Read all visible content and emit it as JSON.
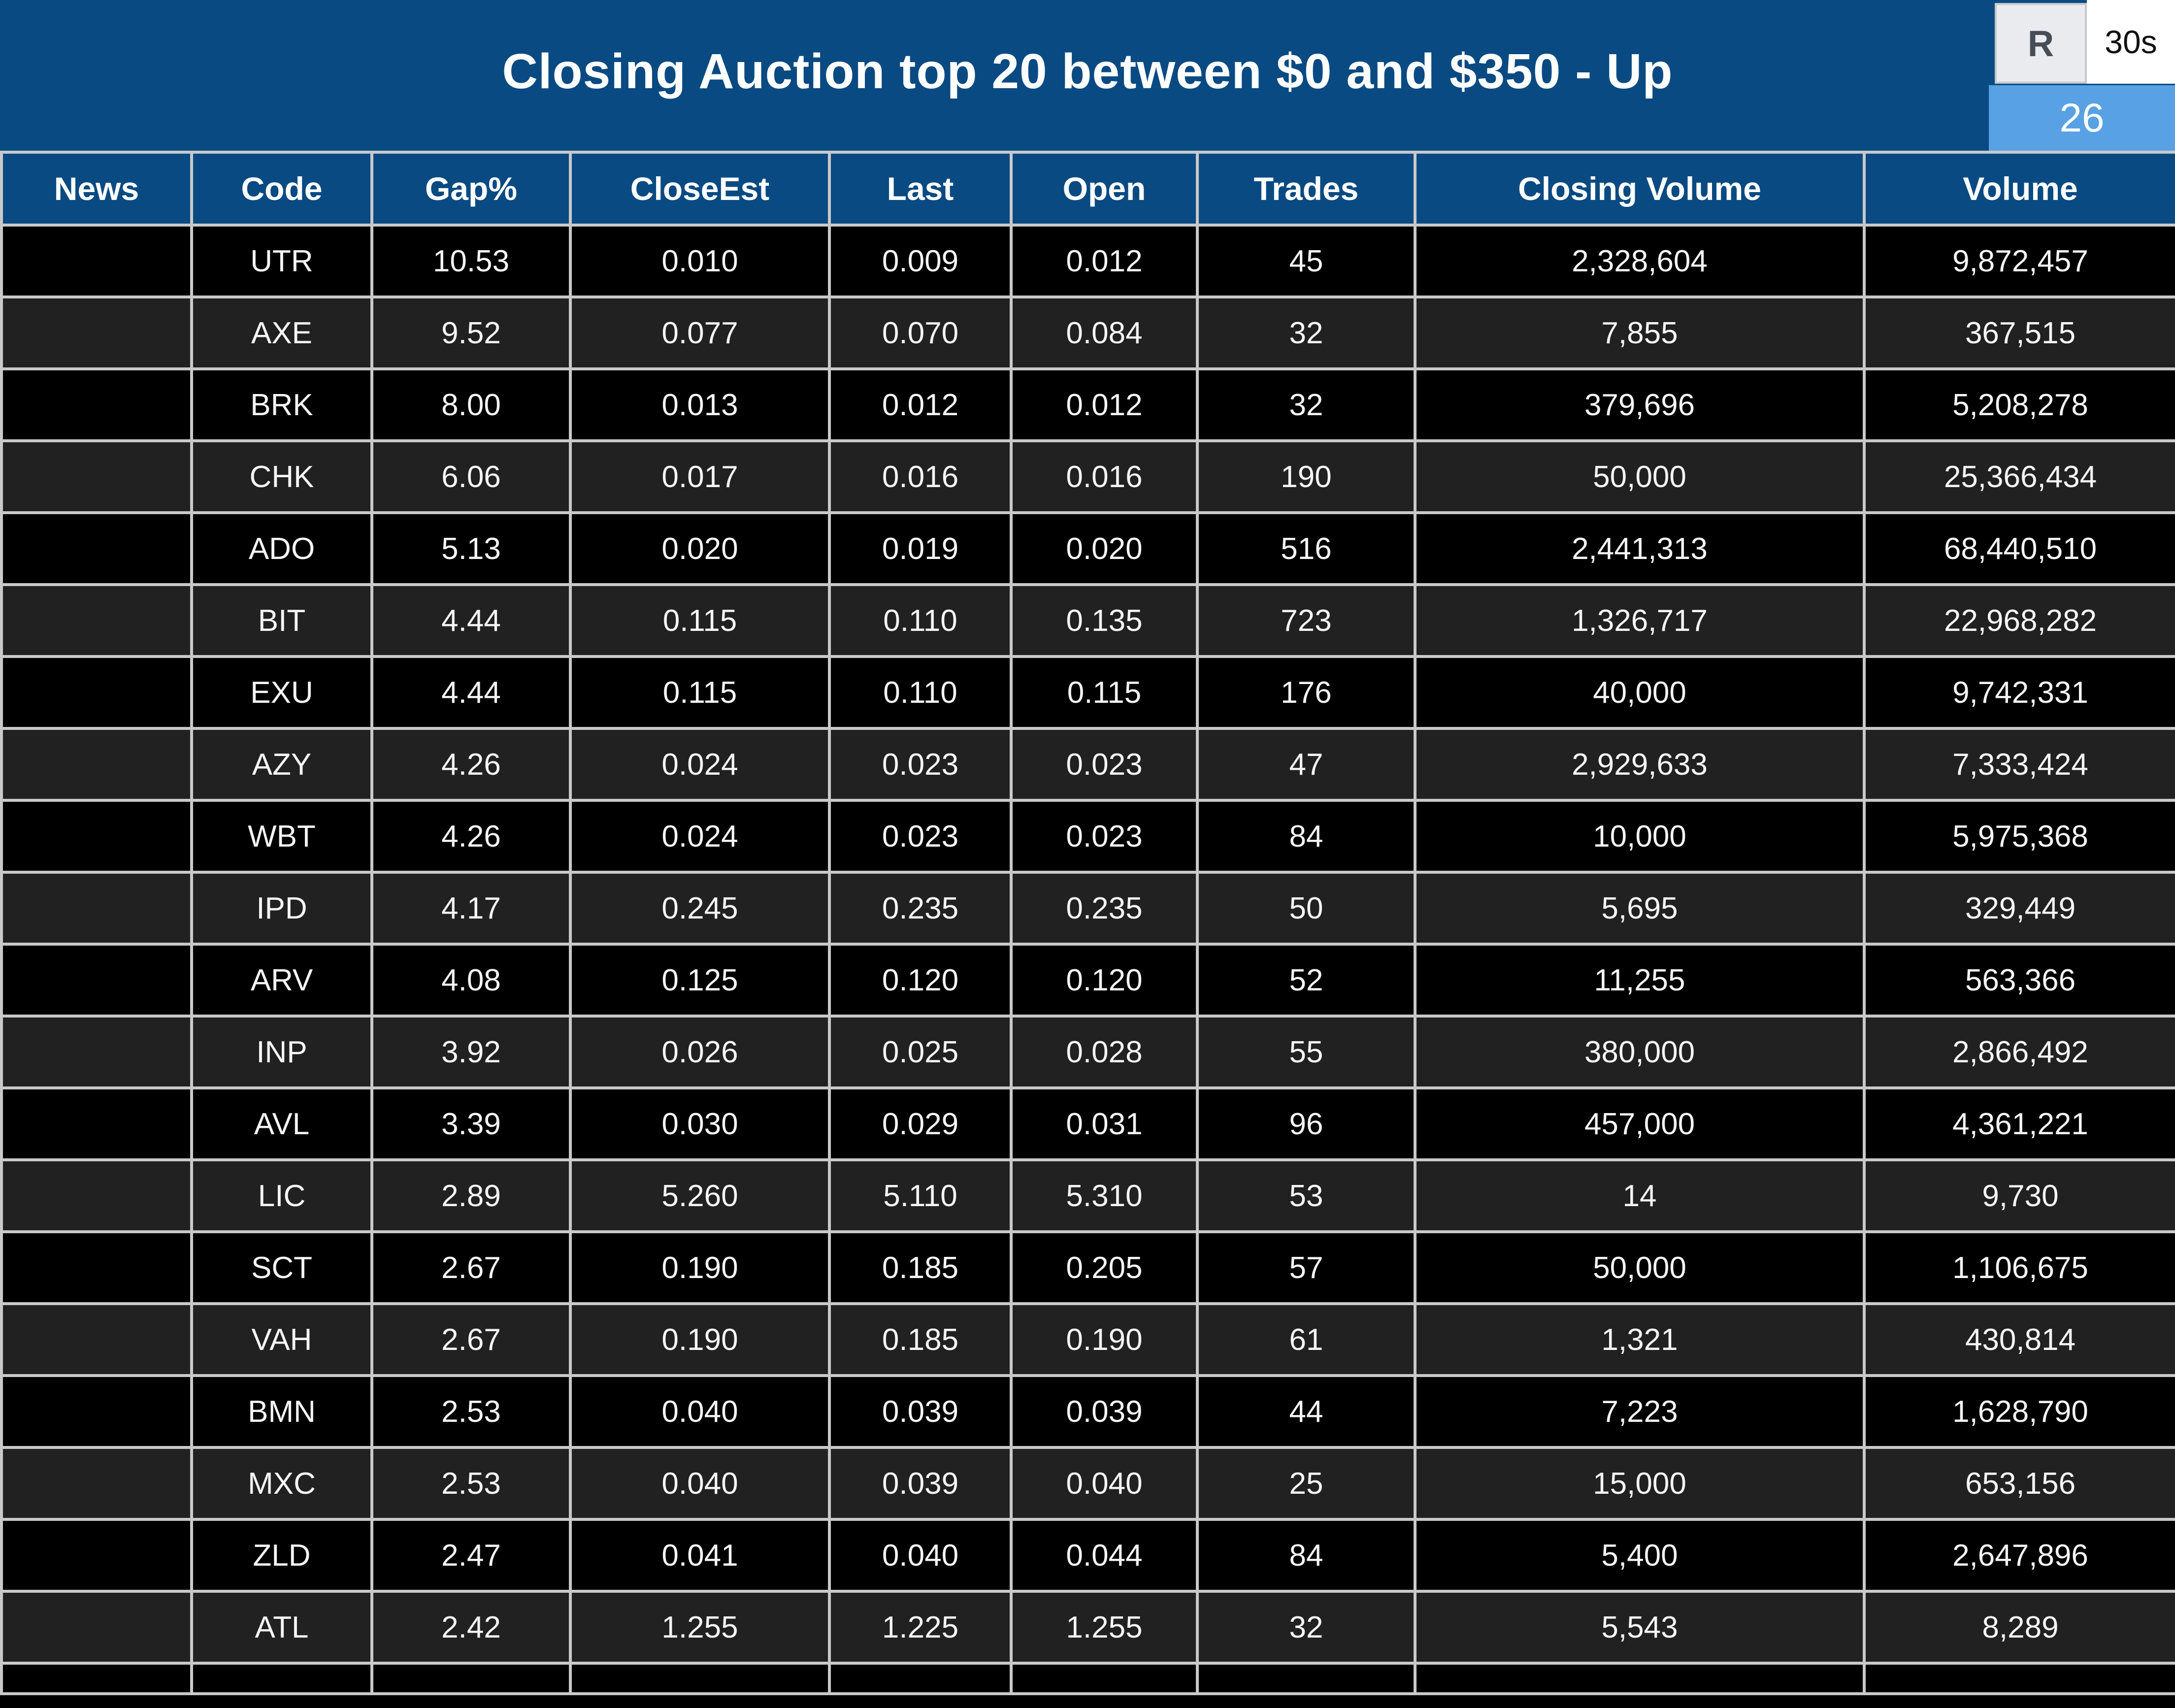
{
  "title_bar": {
    "title": "Closing Auction top 20 between $0 and $350 - Up",
    "refresh_button_label": "R",
    "interval_label": "30s",
    "count_badge": "26"
  },
  "colors": {
    "header_blue": "#0a4a82",
    "count_badge_blue": "#58a1e4",
    "grid_line": "#c9c9c9",
    "row_black": "#000000",
    "row_alt_gray": "#212121",
    "refresh_button_bg": "#e9ebee",
    "text_white": "#f5f5f5"
  },
  "table": {
    "columns": [
      "News",
      "Code",
      "Gap%",
      "CloseEst",
      "Last",
      "Open",
      "Trades",
      "Closing Volume",
      "Volume"
    ],
    "rows": [
      [
        "",
        "UTR",
        "10.53",
        "0.010",
        "0.009",
        "0.012",
        "45",
        "2,328,604",
        "9,872,457"
      ],
      [
        "",
        "AXE",
        "9.52",
        "0.077",
        "0.070",
        "0.084",
        "32",
        "7,855",
        "367,515"
      ],
      [
        "",
        "BRK",
        "8.00",
        "0.013",
        "0.012",
        "0.012",
        "32",
        "379,696",
        "5,208,278"
      ],
      [
        "",
        "CHK",
        "6.06",
        "0.017",
        "0.016",
        "0.016",
        "190",
        "50,000",
        "25,366,434"
      ],
      [
        "",
        "ADO",
        "5.13",
        "0.020",
        "0.019",
        "0.020",
        "516",
        "2,441,313",
        "68,440,510"
      ],
      [
        "",
        "BIT",
        "4.44",
        "0.115",
        "0.110",
        "0.135",
        "723",
        "1,326,717",
        "22,968,282"
      ],
      [
        "",
        "EXU",
        "4.44",
        "0.115",
        "0.110",
        "0.115",
        "176",
        "40,000",
        "9,742,331"
      ],
      [
        "",
        "AZY",
        "4.26",
        "0.024",
        "0.023",
        "0.023",
        "47",
        "2,929,633",
        "7,333,424"
      ],
      [
        "",
        "WBT",
        "4.26",
        "0.024",
        "0.023",
        "0.023",
        "84",
        "10,000",
        "5,975,368"
      ],
      [
        "",
        "IPD",
        "4.17",
        "0.245",
        "0.235",
        "0.235",
        "50",
        "5,695",
        "329,449"
      ],
      [
        "",
        "ARV",
        "4.08",
        "0.125",
        "0.120",
        "0.120",
        "52",
        "11,255",
        "563,366"
      ],
      [
        "",
        "INP",
        "3.92",
        "0.026",
        "0.025",
        "0.028",
        "55",
        "380,000",
        "2,866,492"
      ],
      [
        "",
        "AVL",
        "3.39",
        "0.030",
        "0.029",
        "0.031",
        "96",
        "457,000",
        "4,361,221"
      ],
      [
        "",
        "LIC",
        "2.89",
        "5.260",
        "5.110",
        "5.310",
        "53",
        "14",
        "9,730"
      ],
      [
        "",
        "SCT",
        "2.67",
        "0.190",
        "0.185",
        "0.205",
        "57",
        "50,000",
        "1,106,675"
      ],
      [
        "",
        "VAH",
        "2.67",
        "0.190",
        "0.185",
        "0.190",
        "61",
        "1,321",
        "430,814"
      ],
      [
        "",
        "BMN",
        "2.53",
        "0.040",
        "0.039",
        "0.039",
        "44",
        "7,223",
        "1,628,790"
      ],
      [
        "",
        "MXC",
        "2.53",
        "0.040",
        "0.039",
        "0.040",
        "25",
        "15,000",
        "653,156"
      ],
      [
        "",
        "ZLD",
        "2.47",
        "0.041",
        "0.040",
        "0.044",
        "84",
        "5,400",
        "2,647,896"
      ],
      [
        "",
        "ATL",
        "2.42",
        "1.255",
        "1.225",
        "1.255",
        "32",
        "5,543",
        "8,289"
      ]
    ]
  }
}
